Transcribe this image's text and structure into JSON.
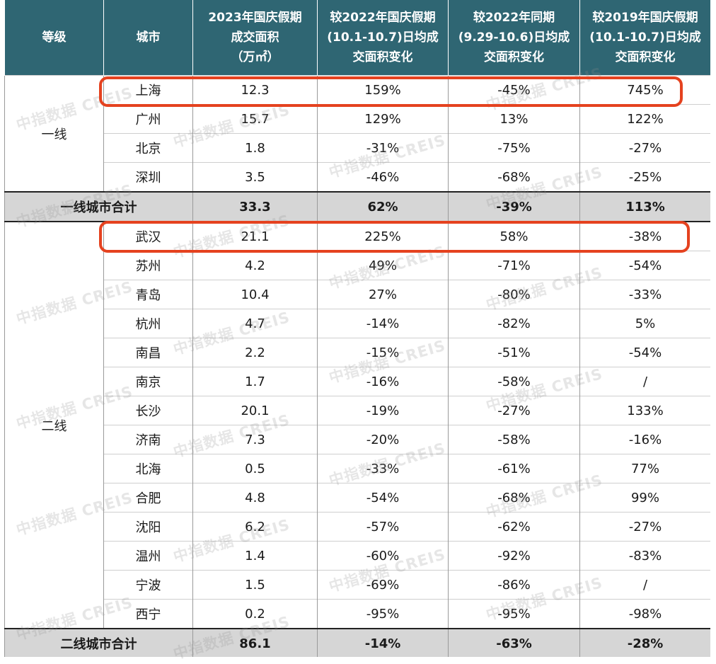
{
  "header": {
    "level": "等级",
    "city": "城市",
    "area": [
      "2023年国庆假期",
      "成交面积",
      "（万㎡）"
    ],
    "vs2022holiday": [
      "较2022年国庆假期",
      "(10.1-10.7)日均成",
      "交面积变化"
    ],
    "vs2022period": [
      "较2022年同期",
      "(9.29-10.6)日均成",
      "交面积变化"
    ],
    "vs2019holiday": [
      "较2019年国庆假期",
      "(10.1-10.7)日均成",
      "交面积变化"
    ]
  },
  "tier1": {
    "label": "一线",
    "rows": [
      [
        "上海",
        "12.3",
        "159%",
        "-45%",
        "745%"
      ],
      [
        "广州",
        "15.7",
        "129%",
        "13%",
        "122%"
      ],
      [
        "北京",
        "1.8",
        "-31%",
        "-75%",
        "-27%"
      ],
      [
        "深圳",
        "3.5",
        "-46%",
        "-68%",
        "-25%"
      ]
    ],
    "total": [
      "一线城市合计",
      "33.3",
      "62%",
      "-39%",
      "113%"
    ]
  },
  "tier2": {
    "label": "二线",
    "rows": [
      [
        "武汉",
        "21.1",
        "225%",
        "58%",
        "-38%"
      ],
      [
        "苏州",
        "4.2",
        "49%",
        "-71%",
        "-54%"
      ],
      [
        "青岛",
        "10.4",
        "27%",
        "-80%",
        "-33%"
      ],
      [
        "杭州",
        "4.7",
        "-14%",
        "-82%",
        "5%"
      ],
      [
        "南昌",
        "2.2",
        "-15%",
        "-51%",
        "-54%"
      ],
      [
        "南京",
        "1.7",
        "-16%",
        "-58%",
        "/"
      ],
      [
        "长沙",
        "20.1",
        "-19%",
        "-27%",
        "133%"
      ],
      [
        "济南",
        "7.3",
        "-20%",
        "-58%",
        "-16%"
      ],
      [
        "北海",
        "0.5",
        "-33%",
        "-61%",
        "77%"
      ],
      [
        "合肥",
        "4.8",
        "-54%",
        "-68%",
        "99%"
      ],
      [
        "沈阳",
        "6.2",
        "-57%",
        "-62%",
        "-27%"
      ],
      [
        "温州",
        "1.4",
        "-60%",
        "-92%",
        "-83%"
      ],
      [
        "宁波",
        "1.5",
        "-69%",
        "-86%",
        "/"
      ],
      [
        "西宁",
        "0.2",
        "-95%",
        "-95%",
        "-98%"
      ]
    ],
    "total": [
      "二线城市合计",
      "86.1",
      "-14%",
      "-63%",
      "-28%"
    ]
  },
  "watermark": {
    "text": "中指数据 CREIS"
  },
  "colors": {
    "header_bg": "#2f6673",
    "highlight": "#e5421f",
    "subtotal_bg": "#d6d6d6"
  }
}
